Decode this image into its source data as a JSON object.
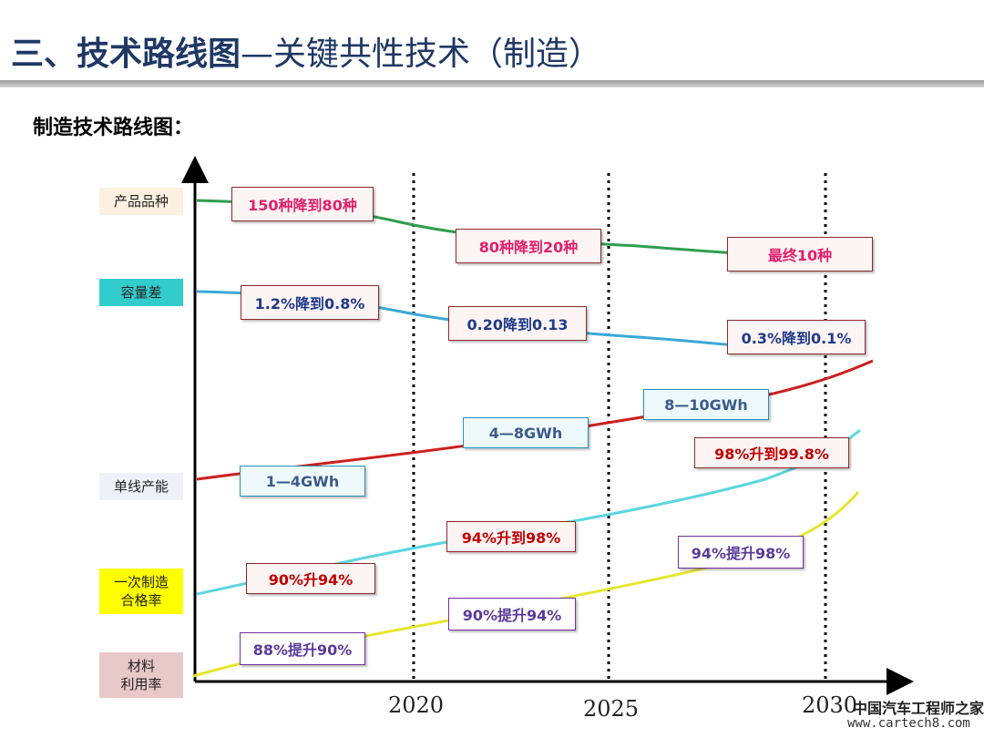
{
  "header": {
    "title_main": "三、技术路线图",
    "title_sub": "—关键共性技术（制造）"
  },
  "section_label": "制造技术路线图：",
  "rows": [
    {
      "label": "产品品种",
      "bg": "#fdf0e0"
    },
    {
      "label": "容量差",
      "bg": "#33cccc"
    },
    {
      "label": "单线产能",
      "bg": "#eef2f8"
    },
    {
      "label": "一次制造\n合格率",
      "bg": "#ffff00"
    },
    {
      "label": "材料\n利用率",
      "bg": "#e8c8c8"
    }
  ],
  "years": [
    "2020",
    "2025",
    "2030"
  ],
  "boxes": [
    {
      "text": "150种降到80种",
      "style": "pink"
    },
    {
      "text": "80种降到20种",
      "style": "pink"
    },
    {
      "text": "最终10种",
      "style": "pink"
    },
    {
      "text": "1.2%降到0.8%",
      "style": "navy"
    },
    {
      "text": "0.20降到0.13",
      "style": "navy"
    },
    {
      "text": "0.3%降到0.1%",
      "style": "navy"
    },
    {
      "text": "1—4GWh",
      "style": "blue"
    },
    {
      "text": "4—8GWh",
      "style": "blue"
    },
    {
      "text": "8—10GWh",
      "style": "blue"
    },
    {
      "text": "90%升94%",
      "style": "red"
    },
    {
      "text": "94%升到98%",
      "style": "red"
    },
    {
      "text": "98%升到99.8%",
      "style": "red"
    },
    {
      "text": "88%提升90%",
      "style": "purple"
    },
    {
      "text": "90%提升94%",
      "style": "purple"
    },
    {
      "text": "94%提升98%",
      "style": "purple"
    }
  ],
  "colors": {
    "variety_line": "#2e9e4e",
    "capacity_line": "#3aa8d8",
    "output_line": "#cc1f1f",
    "yield_line": "#5ad6e0",
    "utilization_line": "#e6e62e"
  },
  "watermark": {
    "line1": "中国汽车工程师之家",
    "line2": "www.cartech8.com"
  }
}
